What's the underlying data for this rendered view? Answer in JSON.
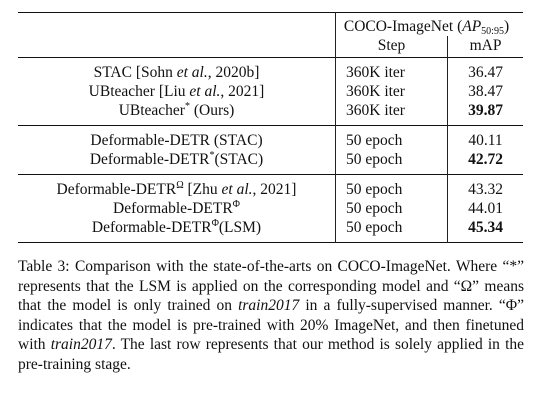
{
  "table": {
    "header": {
      "group_label": "COCO-ImageNet (",
      "metric_symbol": "AP",
      "metric_sub": "50:95",
      "group_label_close": ")",
      "col_step": "Step",
      "col_map": "mAP"
    },
    "rows": [
      {
        "parts": [
          "STAC [Sohn ",
          "et al.",
          ", 2020b]"
        ],
        "step": "360K iter",
        "map": "36.47",
        "bold": false
      },
      {
        "parts": [
          "UBteacher [Liu ",
          "et al.",
          ", 2021]"
        ],
        "step": "360K iter",
        "map": "38.47",
        "bold": false
      },
      {
        "parts": [
          "UBteacher",
          "*",
          " (Ours)"
        ],
        "step": "360K iter",
        "map": "39.87",
        "bold": true
      },
      {
        "parts": [
          "Deformable-DETR (STAC)"
        ],
        "step": "50 epoch",
        "map": "40.11",
        "bold": false
      },
      {
        "parts": [
          "Deformable-DETR",
          "*",
          "(STAC)"
        ],
        "step": "50 epoch",
        "map": "42.72",
        "bold": true
      },
      {
        "parts": [
          "Deformable-DETR",
          "Ω",
          " [Zhu ",
          "et al.",
          ", 2021]"
        ],
        "step": "50 epoch",
        "map": "43.32",
        "bold": false
      },
      {
        "parts": [
          "Deformable-DETR",
          "Φ"
        ],
        "step": "50 epoch",
        "map": "44.01",
        "bold": false
      },
      {
        "parts": [
          "Deformable-DETR",
          "Φ",
          "(LSM)"
        ],
        "step": "50 epoch",
        "map": "45.34",
        "bold": true
      }
    ]
  },
  "caption": {
    "p1": "Table 3: Comparison with the state-of-the-arts on COCO-ImageNet. Where “*” represents that the LSM is applied on the corresponding model and “Ω” means that the model is only trained on ",
    "p2": "train2017",
    "p3": " in a fully-supervised manner. “Φ” indicates that the model is pre-trained with 20% ImageNet, and then finetuned with ",
    "p4": "train2017",
    "p5": ". The last row represents that our method is solely applied in the pre-training stage."
  }
}
